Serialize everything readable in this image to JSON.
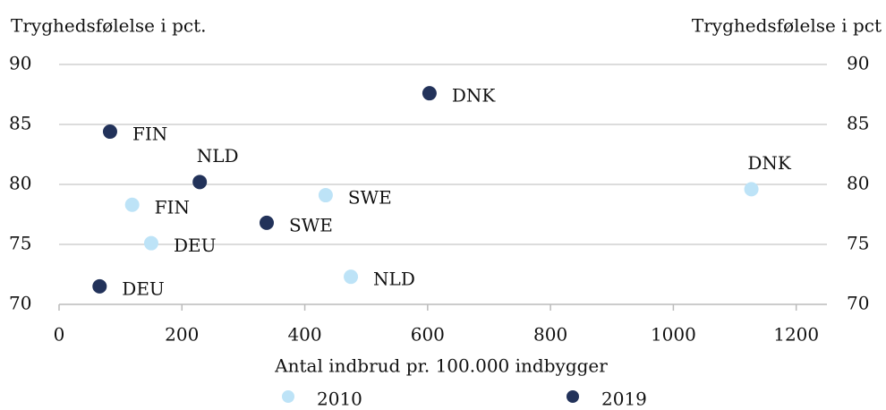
{
  "chart_data": {
    "type": "scatter",
    "y_label": "Tryghedsfølelse i pct.",
    "y2_label": "Tryghedsfølelse i pct",
    "x_label": "Antal indbrud pr. 100.000 indbygger",
    "xlim": [
      0,
      1250
    ],
    "xticks": [
      0,
      200,
      400,
      600,
      800,
      1000,
      1200
    ],
    "ylim": [
      70,
      90
    ],
    "yticks": [
      70,
      75,
      80,
      85,
      90
    ],
    "y2lim": [
      70,
      90
    ],
    "y2ticks": [
      70,
      75,
      80,
      85,
      90
    ],
    "grid": true,
    "legend": "bottom",
    "series": [
      {
        "name": "2010",
        "color": "#bde3f7",
        "labels": [
          "FIN",
          "DEU",
          "SWE",
          "NLD",
          "DNK"
        ],
        "x": [
          119,
          150,
          434,
          475,
          1127
        ],
        "values": [
          78.3,
          75.1,
          79.1,
          72.3,
          79.6
        ]
      },
      {
        "name": "2019",
        "color": "#22325a",
        "labels": [
          "FIN",
          "NLD",
          "DEU",
          "SWE",
          "DNK"
        ],
        "x": [
          83,
          229,
          66,
          338,
          603
        ],
        "values": [
          84.4,
          80.2,
          71.5,
          76.8,
          87.6
        ]
      }
    ]
  }
}
